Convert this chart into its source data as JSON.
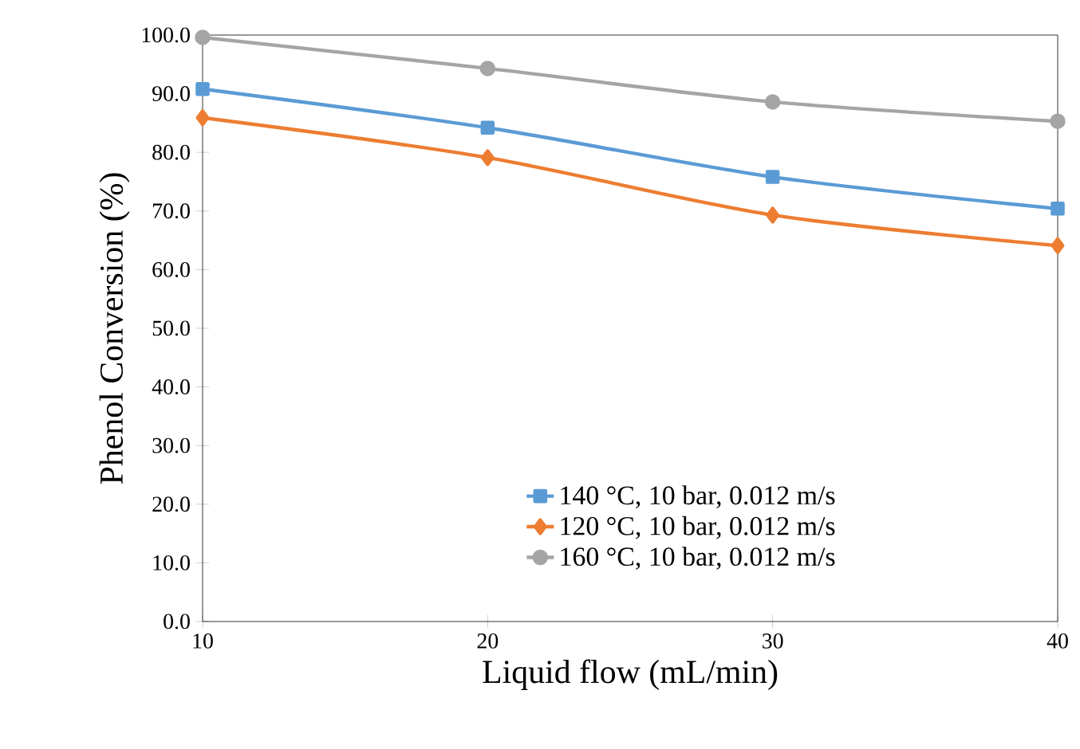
{
  "chart_data": {
    "type": "line",
    "xlabel": "Liquid flow (mL/min)",
    "ylabel": "Phenol Conversion (%)",
    "x": [
      10,
      20,
      30,
      40
    ],
    "series": [
      {
        "name": "140 °C, 10 bar, 0.012 m/s",
        "color": "#5b9bd5",
        "marker": "square",
        "values": [
          90.8,
          84.2,
          75.8,
          70.4
        ]
      },
      {
        "name": "120 °C, 10 bar, 0.012 m/s",
        "color": "#ed7d31",
        "marker": "diamond",
        "values": [
          85.9,
          79.1,
          69.3,
          64.1
        ]
      },
      {
        "name": "160 °C, 10 bar, 0.012 m/s",
        "color": "#a5a5a5",
        "marker": "circle",
        "values": [
          99.6,
          94.3,
          88.6,
          85.3
        ]
      }
    ],
    "xlim": [
      10,
      40
    ],
    "xticks": [
      10,
      20,
      30,
      40
    ],
    "ylim": [
      0,
      100
    ],
    "yticks": [
      {
        "value": 0,
        "label": "0.0"
      },
      {
        "value": 10,
        "label": "10.0"
      },
      {
        "value": 20,
        "label": "20.0"
      },
      {
        "value": 30,
        "label": "30.0"
      },
      {
        "value": 40,
        "label": "40.0"
      },
      {
        "value": 50,
        "label": "50.0"
      },
      {
        "value": 60,
        "label": "60.0"
      },
      {
        "value": 70,
        "label": "70.0"
      },
      {
        "value": 80,
        "label": "80.0"
      },
      {
        "value": 90,
        "label": "90.0"
      },
      {
        "value": 100,
        "label": "100.0"
      }
    ],
    "grid": false,
    "legend": "bottom",
    "line_style": "solid"
  }
}
